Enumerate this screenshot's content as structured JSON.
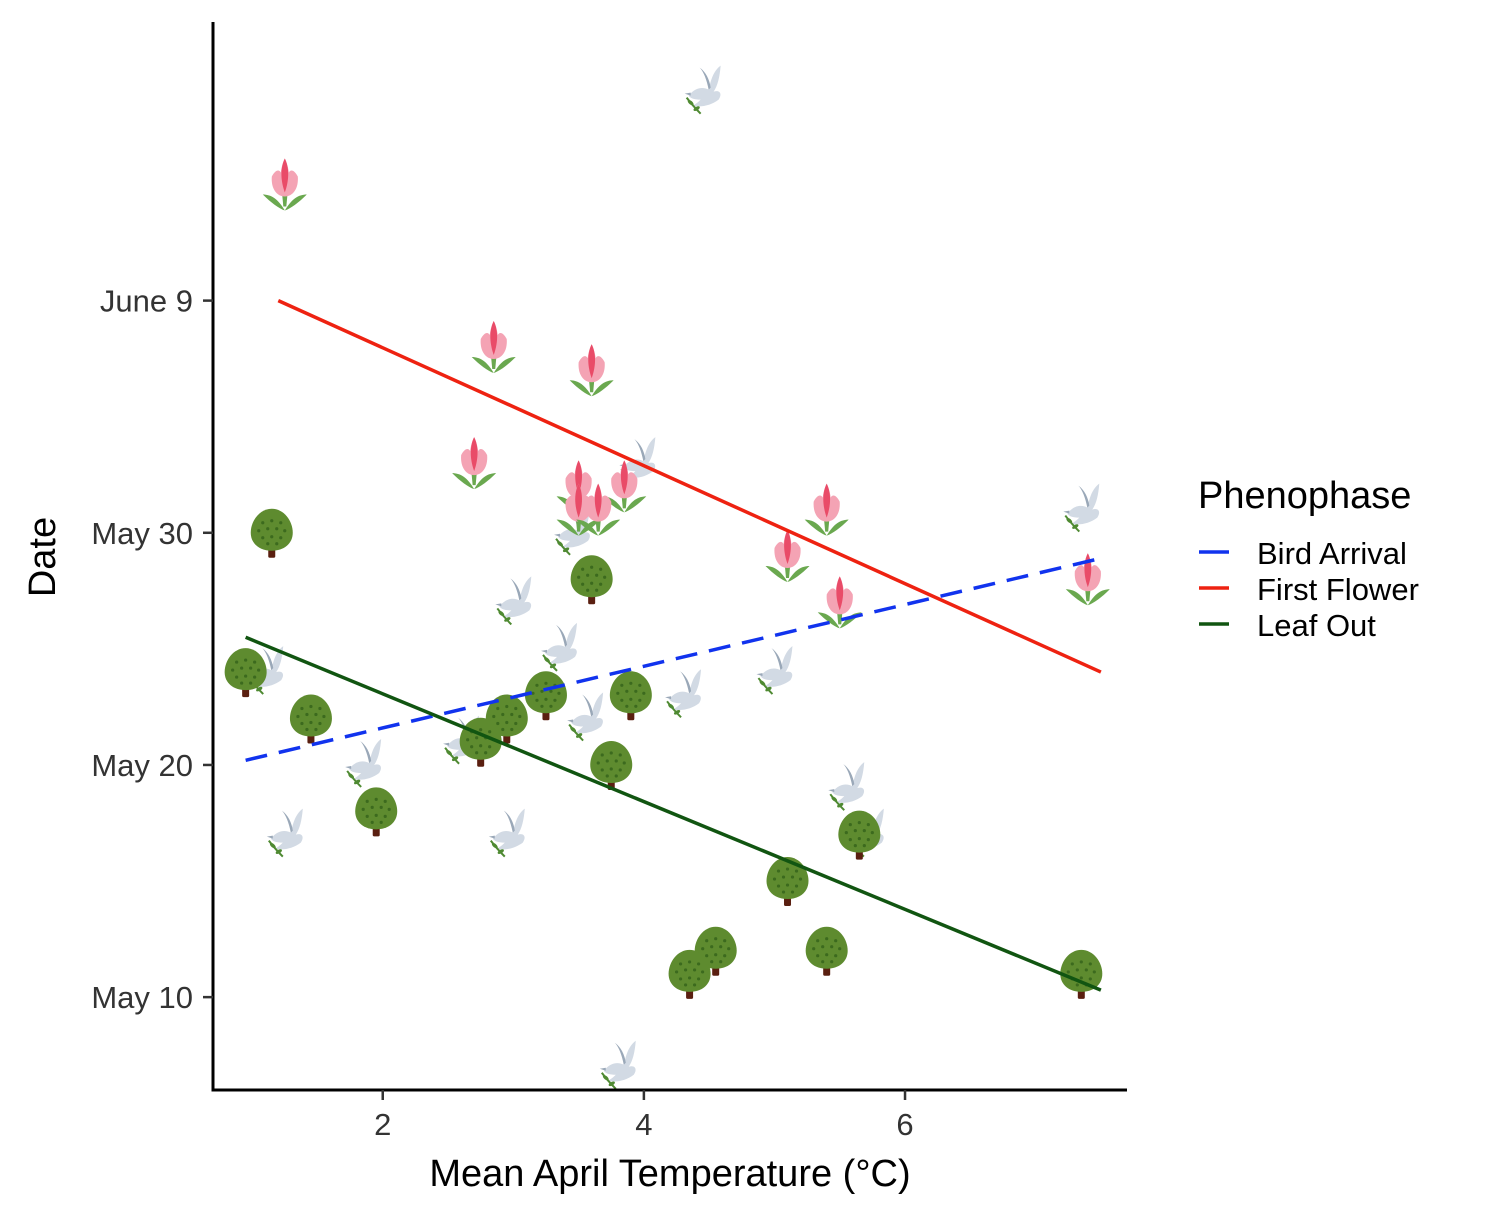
{
  "chart_data": {
    "type": "scatter",
    "title": "",
    "xlabel": "Mean April Temperature (°C)",
    "ylabel": "Date",
    "xlim": [
      0.7,
      7.7
    ],
    "ylim": [
      "2020-05-06",
      "2020-06-21"
    ],
    "x_ticks": [
      {
        "value": 2,
        "label": "2"
      },
      {
        "value": 4,
        "label": "4"
      },
      {
        "value": 6,
        "label": "6"
      }
    ],
    "y_ticks": [
      {
        "value": "2020-05-10",
        "label": "May 10"
      },
      {
        "value": "2020-05-20",
        "label": "May 20"
      },
      {
        "value": "2020-05-30",
        "label": "May 30"
      },
      {
        "value": "2020-06-09",
        "label": "June 9"
      }
    ],
    "grid": false,
    "legend": {
      "title": "Phenophase",
      "placement": "right"
    },
    "series": [
      {
        "name": "Bird Arrival",
        "icon": "bird-icon",
        "color": "#1133ee",
        "line_style": "dashed",
        "points": [
          {
            "x": 4.45,
            "y": "2020-06-18"
          },
          {
            "x": 3.95,
            "y": "2020-06-02"
          },
          {
            "x": 7.35,
            "y": "2020-05-31"
          },
          {
            "x": 3.45,
            "y": "2020-05-30"
          },
          {
            "x": 3.0,
            "y": "2020-05-27"
          },
          {
            "x": 3.35,
            "y": "2020-05-25"
          },
          {
            "x": 1.1,
            "y": "2020-05-24"
          },
          {
            "x": 5.0,
            "y": "2020-05-24"
          },
          {
            "x": 4.3,
            "y": "2020-05-23"
          },
          {
            "x": 3.55,
            "y": "2020-05-22"
          },
          {
            "x": 2.6,
            "y": "2020-05-21"
          },
          {
            "x": 1.85,
            "y": "2020-05-20"
          },
          {
            "x": 5.55,
            "y": "2020-05-19"
          },
          {
            "x": 5.7,
            "y": "2020-05-17"
          },
          {
            "x": 1.25,
            "y": "2020-05-17"
          },
          {
            "x": 2.95,
            "y": "2020-05-17"
          },
          {
            "x": 3.8,
            "y": "2020-05-07"
          }
        ],
        "trend": [
          {
            "x": 0.95,
            "y": "2020-05-20.2"
          },
          {
            "x": 7.5,
            "y": "2020-05-28.9"
          }
        ]
      },
      {
        "name": "First Flower",
        "icon": "tulip-icon",
        "color": "#ee2211",
        "line_style": "solid",
        "points": [
          {
            "x": 1.25,
            "y": "2020-06-14"
          },
          {
            "x": 2.85,
            "y": "2020-06-07"
          },
          {
            "x": 3.6,
            "y": "2020-06-06"
          },
          {
            "x": 2.7,
            "y": "2020-06-02"
          },
          {
            "x": 3.5,
            "y": "2020-06-01"
          },
          {
            "x": 3.85,
            "y": "2020-06-01"
          },
          {
            "x": 3.5,
            "y": "2020-05-31"
          },
          {
            "x": 3.65,
            "y": "2020-05-31"
          },
          {
            "x": 5.4,
            "y": "2020-05-31"
          },
          {
            "x": 5.1,
            "y": "2020-05-29"
          },
          {
            "x": 7.4,
            "y": "2020-05-28"
          },
          {
            "x": 5.5,
            "y": "2020-05-27"
          }
        ],
        "trend": [
          {
            "x": 1.2,
            "y": "2020-06-09"
          },
          {
            "x": 7.5,
            "y": "2020-05-24"
          }
        ]
      },
      {
        "name": "Leaf Out",
        "icon": "tree-icon",
        "color": "#115511",
        "line_style": "solid",
        "points": [
          {
            "x": 1.15,
            "y": "2020-05-30"
          },
          {
            "x": 3.6,
            "y": "2020-05-28"
          },
          {
            "x": 0.95,
            "y": "2020-05-24"
          },
          {
            "x": 3.9,
            "y": "2020-05-23"
          },
          {
            "x": 3.25,
            "y": "2020-05-23"
          },
          {
            "x": 2.95,
            "y": "2020-05-22"
          },
          {
            "x": 1.45,
            "y": "2020-05-22"
          },
          {
            "x": 2.75,
            "y": "2020-05-21"
          },
          {
            "x": 3.75,
            "y": "2020-05-20"
          },
          {
            "x": 1.95,
            "y": "2020-05-18"
          },
          {
            "x": 5.65,
            "y": "2020-05-17"
          },
          {
            "x": 5.1,
            "y": "2020-05-15"
          },
          {
            "x": 5.4,
            "y": "2020-05-12"
          },
          {
            "x": 4.55,
            "y": "2020-05-12"
          },
          {
            "x": 4.35,
            "y": "2020-05-11"
          },
          {
            "x": 7.35,
            "y": "2020-05-11"
          }
        ],
        "trend": [
          {
            "x": 0.95,
            "y": "2020-05-25.5"
          },
          {
            "x": 7.5,
            "y": "2020-05-10.3"
          }
        ]
      }
    ]
  }
}
